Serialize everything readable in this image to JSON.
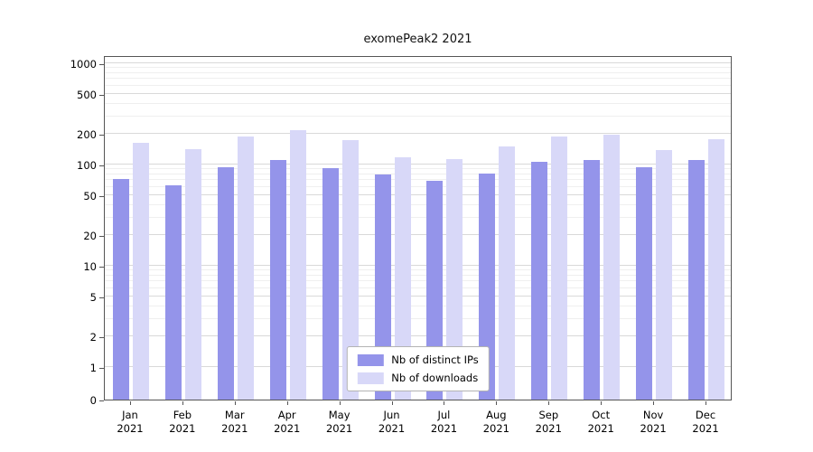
{
  "title": "exomePeak2 2021",
  "chart_data": {
    "type": "bar",
    "title": "exomePeak2 2021",
    "yscale": "symlog",
    "categories": [
      "Jan 2021",
      "Feb 2021",
      "Mar 2021",
      "Apr 2021",
      "May 2021",
      "Jun 2021",
      "Jul 2021",
      "Aug 2021",
      "Sep 2021",
      "Oct 2021",
      "Nov 2021",
      "Dec 2021"
    ],
    "series": [
      {
        "name": "Nb of distinct IPs",
        "color": "#9494ea",
        "values": [
          72,
          62,
          95,
          110,
          93,
          79,
          69,
          81,
          107,
          112,
          95,
          112
        ]
      },
      {
        "name": "Nb of downloads",
        "color": "#d8d8f8",
        "values": [
          165,
          142,
          190,
          218,
          175,
          118,
          113,
          152,
          190,
          197,
          138,
          178
        ]
      }
    ],
    "y_ticks": [
      0,
      1,
      2,
      5,
      10,
      20,
      50,
      100,
      200,
      500,
      1000
    ],
    "y_minor_ticks": [
      3,
      4,
      6,
      7,
      8,
      9,
      30,
      40,
      60,
      70,
      80,
      90,
      300,
      400,
      600,
      700,
      800,
      900
    ],
    "ylim": [
      0,
      1200
    ],
    "grid": true,
    "legend_position": "lower center",
    "colors": {
      "grid_major": "#d9d9d9",
      "grid_minor": "#efefef",
      "spine": "#555555",
      "background": "#ffffff"
    }
  }
}
